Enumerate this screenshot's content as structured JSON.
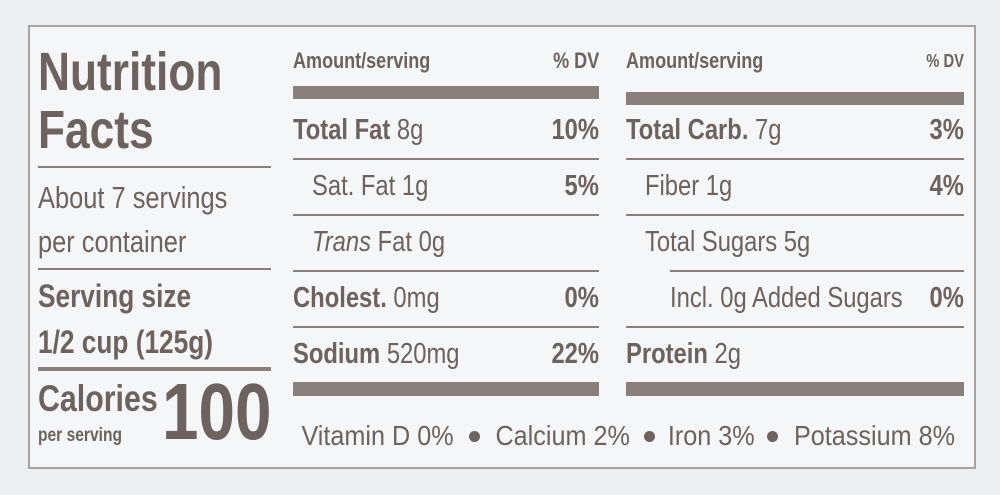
{
  "title_lines": [
    "Nutrition",
    "Facts"
  ],
  "servings_lines": [
    "About 7 servings",
    "per container"
  ],
  "serving_size": {
    "label": "Serving size",
    "value": "1/2 cup (125g)"
  },
  "calories": {
    "label": "Calories",
    "sublabel": "per serving",
    "value": "100"
  },
  "columns": [
    {
      "header": {
        "amount": "Amount/serving",
        "dv": "% DV"
      },
      "rows": [
        {
          "name": "Total Fat",
          "amount": "8g",
          "dv": "10%",
          "bold": true,
          "level": 0
        },
        {
          "name": "Sat. Fat",
          "amount": "1g",
          "dv": "5%",
          "level": 1
        },
        {
          "name_italic": "Trans",
          "name": "Fat",
          "amount": "0g",
          "level": 1
        },
        {
          "name": "Cholest.",
          "amount": "0mg",
          "dv": "0%",
          "bold": true,
          "level": 0
        },
        {
          "name": "Sodium",
          "amount": "520mg",
          "dv": "22%",
          "bold": true,
          "level": 0
        }
      ]
    },
    {
      "header": {
        "amount": "Amount/serving",
        "dv": "% DV"
      },
      "rows": [
        {
          "name": "Total Carb.",
          "amount": "7g",
          "dv": "3%",
          "bold": true,
          "level": 0
        },
        {
          "name": "Fiber",
          "amount": "1g",
          "dv": "4%",
          "level": 1
        },
        {
          "name": "Total Sugars",
          "amount": "5g",
          "level": 1
        },
        {
          "name": "Incl. 0g Added Sugars",
          "dv": "0%",
          "level": 2
        },
        {
          "name": "Protein",
          "amount": "2g",
          "bold": true,
          "level": 0
        }
      ]
    }
  ],
  "vitamins": [
    "Vitamin D 0%",
    "Calcium 2%",
    "Iron 3%",
    "Potassium 8%"
  ]
}
